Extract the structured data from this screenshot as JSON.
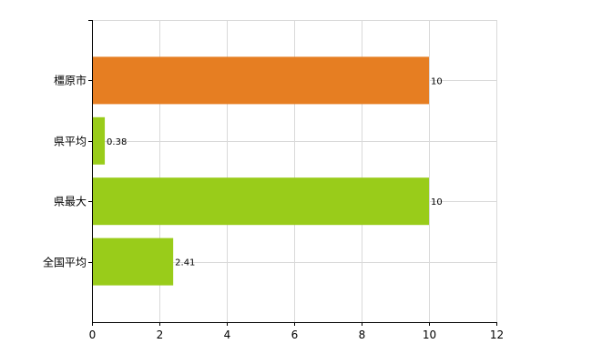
{
  "chart_data": {
    "type": "bar",
    "orientation": "horizontal",
    "categories": [
      "橿原市",
      "県平均",
      "県最大",
      "全国平均"
    ],
    "values": [
      10,
      0.38,
      10,
      2.41
    ],
    "data_labels": [
      "10",
      "0.38",
      "10",
      "2.41"
    ],
    "bar_colors": [
      "#e67e22",
      "#99cc1a",
      "#99cc1a",
      "#99cc1a"
    ],
    "xlim": [
      0,
      12
    ],
    "x_ticks": [
      0,
      2,
      4,
      6,
      8,
      10,
      12
    ],
    "grid": true,
    "legend": "none",
    "title": "",
    "xlabel": "",
    "ylabel": ""
  }
}
